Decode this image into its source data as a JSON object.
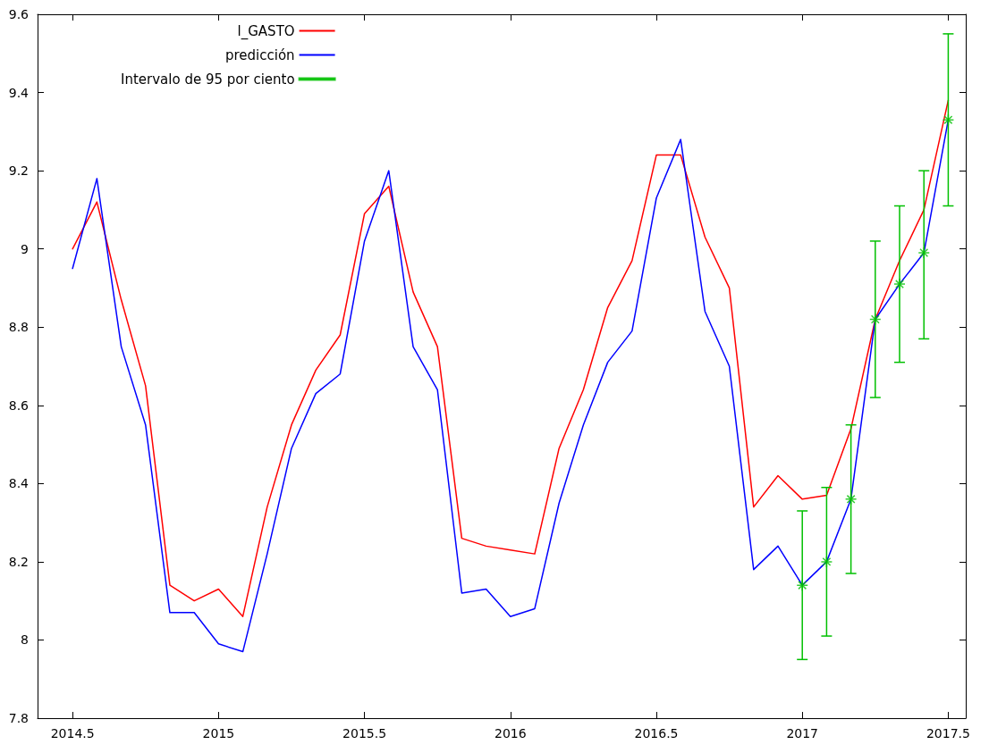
{
  "chart_data": {
    "type": "line",
    "x": [
      2014.5,
      2014.5833,
      2014.6667,
      2014.75,
      2014.8333,
      2014.9167,
      2015,
      2015.0833,
      2015.1667,
      2015.25,
      2015.3333,
      2015.4167,
      2015.5,
      2015.5833,
      2015.6667,
      2015.75,
      2015.8333,
      2015.9167,
      2016,
      2016.0833,
      2016.1667,
      2016.25,
      2016.3333,
      2016.4167,
      2016.5,
      2016.5833,
      2016.6667,
      2016.75,
      2016.8333,
      2016.9167,
      2017,
      2017.0833,
      2017.1667,
      2017.25,
      2017.3333,
      2017.4167,
      2017.5
    ],
    "xlim": [
      2014.38,
      2017.56
    ],
    "xticks": [
      2014.5,
      2015,
      2015.5,
      2016,
      2016.5,
      2017,
      2017.5
    ],
    "ylim": [
      7.8,
      9.6
    ],
    "yticks": [
      7.8,
      8,
      8.2,
      8.4,
      8.6,
      8.8,
      9,
      9.2,
      9.4,
      9.6
    ],
    "grid": false,
    "legend": "top",
    "line_style": "solid",
    "series": [
      {
        "name": "l_GASTO",
        "color": "#ff0000",
        "values": [
          9.0,
          9.12,
          8.87,
          8.65,
          8.14,
          8.1,
          8.13,
          8.06,
          8.34,
          8.55,
          8.69,
          8.78,
          9.09,
          9.16,
          8.89,
          8.75,
          8.26,
          8.24,
          8.23,
          8.22,
          8.49,
          8.64,
          8.85,
          8.97,
          9.24,
          9.24,
          9.03,
          8.9,
          8.34,
          8.42,
          8.36,
          8.37,
          8.54,
          8.82,
          8.97,
          9.1,
          9.38
        ]
      },
      {
        "name": "predicción",
        "color": "#0000ff",
        "values": [
          8.95,
          9.18,
          8.75,
          8.55,
          8.07,
          8.07,
          7.99,
          7.97,
          8.22,
          8.49,
          8.63,
          8.68,
          9.02,
          9.2,
          8.75,
          8.64,
          8.12,
          8.13,
          8.06,
          8.08,
          8.35,
          8.55,
          8.71,
          8.79,
          9.13,
          9.28,
          8.84,
          8.7,
          8.18,
          8.24,
          8.14,
          8.2,
          8.36,
          8.82,
          8.91,
          8.99,
          9.33
        ]
      },
      {
        "name": "Intervalo de 95 por ciento",
        "type": "scatter",
        "marker": "cross",
        "color": "#00c000",
        "x": [
          2017,
          2017.0833,
          2017.1667,
          2017.25,
          2017.3333,
          2017.4167,
          2017.5
        ],
        "values": [
          8.14,
          8.2,
          8.36,
          8.82,
          8.91,
          8.99,
          9.33
        ],
        "errors": [
          [
            7.95,
            8.33
          ],
          [
            8.01,
            8.39
          ],
          [
            8.17,
            8.55
          ],
          [
            8.62,
            9.02
          ],
          [
            8.71,
            9.11
          ],
          [
            8.77,
            9.2
          ],
          [
            9.11,
            9.55
          ]
        ]
      }
    ]
  }
}
